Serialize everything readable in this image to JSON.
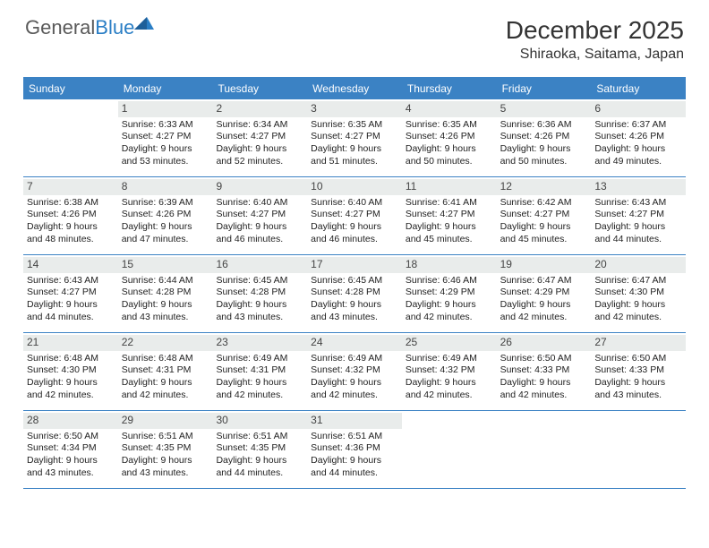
{
  "branding": {
    "logo_text_a": "General",
    "logo_text_b": "Blue",
    "logo_color_gray": "#5a5a5a",
    "logo_color_blue": "#2a7ec5"
  },
  "title": {
    "month_year": "December 2025",
    "location": "Shiraoka, Saitama, Japan"
  },
  "colors": {
    "header_bg": "#3b82c4",
    "header_text": "#ffffff",
    "daynum_bg": "#e9eceb",
    "border": "#3b82c4",
    "page_bg": "#ffffff",
    "body_text": "#222222"
  },
  "weekdays": [
    "Sunday",
    "Monday",
    "Tuesday",
    "Wednesday",
    "Thursday",
    "Friday",
    "Saturday"
  ],
  "weeks": [
    [
      null,
      {
        "n": "1",
        "sunrise": "6:33 AM",
        "sunset": "4:27 PM",
        "daylight": "9 hours and 53 minutes."
      },
      {
        "n": "2",
        "sunrise": "6:34 AM",
        "sunset": "4:27 PM",
        "daylight": "9 hours and 52 minutes."
      },
      {
        "n": "3",
        "sunrise": "6:35 AM",
        "sunset": "4:27 PM",
        "daylight": "9 hours and 51 minutes."
      },
      {
        "n": "4",
        "sunrise": "6:35 AM",
        "sunset": "4:26 PM",
        "daylight": "9 hours and 50 minutes."
      },
      {
        "n": "5",
        "sunrise": "6:36 AM",
        "sunset": "4:26 PM",
        "daylight": "9 hours and 50 minutes."
      },
      {
        "n": "6",
        "sunrise": "6:37 AM",
        "sunset": "4:26 PM",
        "daylight": "9 hours and 49 minutes."
      }
    ],
    [
      {
        "n": "7",
        "sunrise": "6:38 AM",
        "sunset": "4:26 PM",
        "daylight": "9 hours and 48 minutes."
      },
      {
        "n": "8",
        "sunrise": "6:39 AM",
        "sunset": "4:26 PM",
        "daylight": "9 hours and 47 minutes."
      },
      {
        "n": "9",
        "sunrise": "6:40 AM",
        "sunset": "4:27 PM",
        "daylight": "9 hours and 46 minutes."
      },
      {
        "n": "10",
        "sunrise": "6:40 AM",
        "sunset": "4:27 PM",
        "daylight": "9 hours and 46 minutes."
      },
      {
        "n": "11",
        "sunrise": "6:41 AM",
        "sunset": "4:27 PM",
        "daylight": "9 hours and 45 minutes."
      },
      {
        "n": "12",
        "sunrise": "6:42 AM",
        "sunset": "4:27 PM",
        "daylight": "9 hours and 45 minutes."
      },
      {
        "n": "13",
        "sunrise": "6:43 AM",
        "sunset": "4:27 PM",
        "daylight": "9 hours and 44 minutes."
      }
    ],
    [
      {
        "n": "14",
        "sunrise": "6:43 AM",
        "sunset": "4:27 PM",
        "daylight": "9 hours and 44 minutes."
      },
      {
        "n": "15",
        "sunrise": "6:44 AM",
        "sunset": "4:28 PM",
        "daylight": "9 hours and 43 minutes."
      },
      {
        "n": "16",
        "sunrise": "6:45 AM",
        "sunset": "4:28 PM",
        "daylight": "9 hours and 43 minutes."
      },
      {
        "n": "17",
        "sunrise": "6:45 AM",
        "sunset": "4:28 PM",
        "daylight": "9 hours and 43 minutes."
      },
      {
        "n": "18",
        "sunrise": "6:46 AM",
        "sunset": "4:29 PM",
        "daylight": "9 hours and 42 minutes."
      },
      {
        "n": "19",
        "sunrise": "6:47 AM",
        "sunset": "4:29 PM",
        "daylight": "9 hours and 42 minutes."
      },
      {
        "n": "20",
        "sunrise": "6:47 AM",
        "sunset": "4:30 PM",
        "daylight": "9 hours and 42 minutes."
      }
    ],
    [
      {
        "n": "21",
        "sunrise": "6:48 AM",
        "sunset": "4:30 PM",
        "daylight": "9 hours and 42 minutes."
      },
      {
        "n": "22",
        "sunrise": "6:48 AM",
        "sunset": "4:31 PM",
        "daylight": "9 hours and 42 minutes."
      },
      {
        "n": "23",
        "sunrise": "6:49 AM",
        "sunset": "4:31 PM",
        "daylight": "9 hours and 42 minutes."
      },
      {
        "n": "24",
        "sunrise": "6:49 AM",
        "sunset": "4:32 PM",
        "daylight": "9 hours and 42 minutes."
      },
      {
        "n": "25",
        "sunrise": "6:49 AM",
        "sunset": "4:32 PM",
        "daylight": "9 hours and 42 minutes."
      },
      {
        "n": "26",
        "sunrise": "6:50 AM",
        "sunset": "4:33 PM",
        "daylight": "9 hours and 42 minutes."
      },
      {
        "n": "27",
        "sunrise": "6:50 AM",
        "sunset": "4:33 PM",
        "daylight": "9 hours and 43 minutes."
      }
    ],
    [
      {
        "n": "28",
        "sunrise": "6:50 AM",
        "sunset": "4:34 PM",
        "daylight": "9 hours and 43 minutes."
      },
      {
        "n": "29",
        "sunrise": "6:51 AM",
        "sunset": "4:35 PM",
        "daylight": "9 hours and 43 minutes."
      },
      {
        "n": "30",
        "sunrise": "6:51 AM",
        "sunset": "4:35 PM",
        "daylight": "9 hours and 44 minutes."
      },
      {
        "n": "31",
        "sunrise": "6:51 AM",
        "sunset": "4:36 PM",
        "daylight": "9 hours and 44 minutes."
      },
      null,
      null,
      null
    ]
  ],
  "labels": {
    "sunrise_prefix": "Sunrise: ",
    "sunset_prefix": "Sunset: ",
    "daylight_prefix": "Daylight: "
  }
}
